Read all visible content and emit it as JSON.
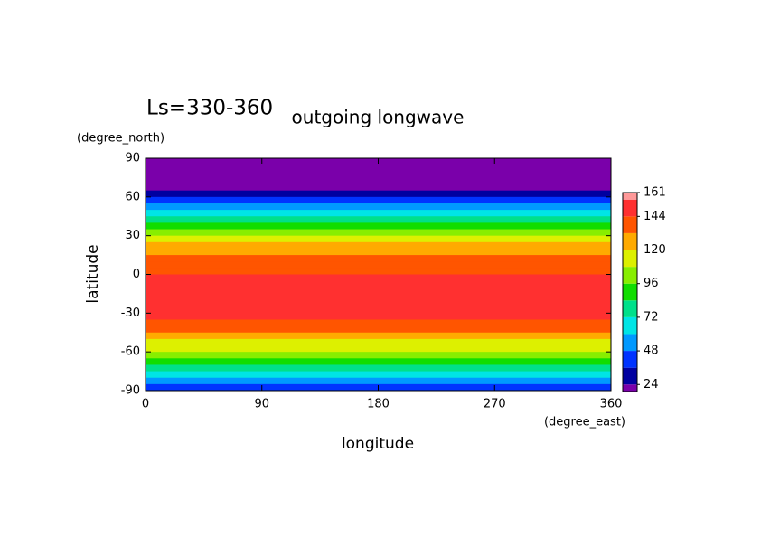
{
  "chart_data": {
    "type": "zonal-contour",
    "title": "outgoing longwave",
    "subtitle": "Ls=330-360",
    "x_label": "longitude",
    "x_unit": "(degree_east)",
    "y_label": "latitude",
    "y_unit": "(degree_north)",
    "xlim": [
      0,
      360
    ],
    "xticks": [
      0,
      90,
      180,
      270,
      360
    ],
    "ylim": [
      -90,
      90
    ],
    "yticks": [
      90,
      60,
      30,
      0,
      -30,
      -60,
      -90
    ],
    "lat": [
      87.5,
      82.5,
      77.5,
      72.5,
      67.5,
      62.5,
      57.5,
      52.5,
      47.5,
      42.5,
      37.5,
      32.5,
      27.5,
      22.5,
      17.5,
      12.5,
      7.5,
      2.5,
      -2.5,
      -7.5,
      -12.5,
      -17.5,
      -22.5,
      -27.5,
      -32.5,
      -37.5,
      -42.5,
      -47.5,
      -52.5,
      -57.5,
      -62.5,
      -67.5,
      -72.5,
      -77.5,
      -82.5,
      -87.5
    ],
    "values": [
      15,
      16,
      17,
      18,
      20,
      30,
      42,
      54,
      66,
      78,
      90,
      102,
      114,
      126,
      130,
      138,
      140,
      142,
      145,
      148,
      150,
      153,
      152,
      150,
      147,
      140,
      132,
      124,
      116,
      108,
      100,
      92,
      82,
      70,
      58,
      46
    ],
    "colorbar": {
      "lim": [
        19,
        161
      ],
      "levels": [
        24,
        36,
        48,
        60,
        72,
        84,
        96,
        108,
        120,
        132,
        144,
        156
      ],
      "colors": [
        "#7a00aa",
        "#0000a0",
        "#0033ff",
        "#0099ff",
        "#00e5e5",
        "#00e08a",
        "#11dd00",
        "#88ee00",
        "#ddf000",
        "#ffaa00",
        "#ff5500",
        "#ff3030",
        "#ff9999"
      ],
      "ticks": [
        24,
        48,
        72,
        96,
        120,
        144,
        161
      ]
    }
  }
}
